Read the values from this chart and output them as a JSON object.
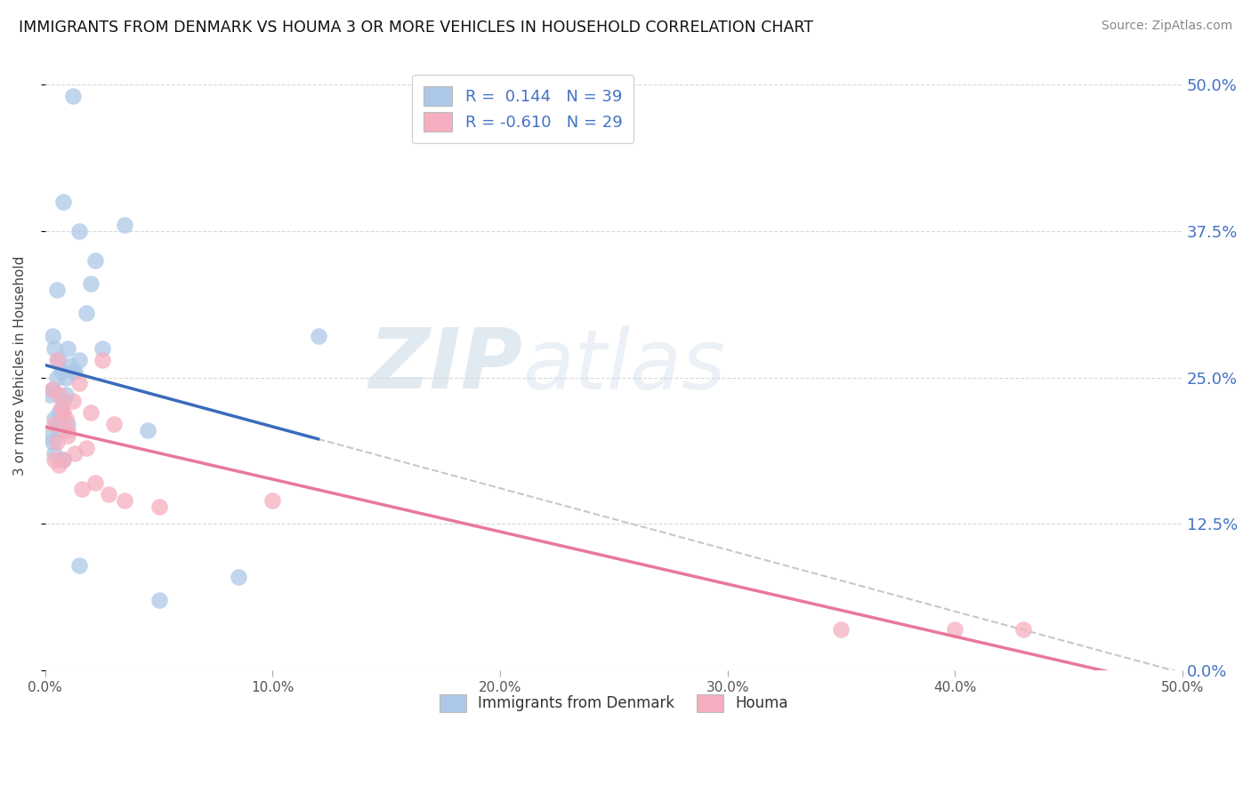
{
  "title": "IMMIGRANTS FROM DENMARK VS HOUMA 3 OR MORE VEHICLES IN HOUSEHOLD CORRELATION CHART",
  "source": "Source: ZipAtlas.com",
  "ylabel": "3 or more Vehicles in Household",
  "xlim": [
    0.0,
    50.0
  ],
  "ylim": [
    0.0,
    52.0
  ],
  "yticks": [
    0.0,
    12.5,
    25.0,
    37.5,
    50.0
  ],
  "xticks": [
    0.0,
    10.0,
    20.0,
    30.0,
    40.0,
    50.0
  ],
  "blue_R": 0.144,
  "blue_N": 39,
  "pink_R": -0.61,
  "pink_N": 29,
  "blue_color": "#adc8e8",
  "pink_color": "#f5afc0",
  "blue_line_color": "#3a6bbd",
  "pink_line_color": "#e8789a",
  "gray_line_color": "#c8c8c8",
  "background_color": "#ffffff",
  "watermark_zip": "ZIP",
  "watermark_atlas": "atlas",
  "blue_points_x": [
    1.2,
    0.8,
    1.5,
    0.5,
    2.2,
    1.8,
    0.3,
    0.4,
    0.6,
    1.0,
    0.7,
    0.5,
    0.3,
    0.2,
    0.8,
    1.1,
    0.6,
    0.4,
    0.9,
    1.3,
    0.2,
    0.5,
    0.7,
    1.0,
    0.3,
    0.6,
    0.4,
    0.8,
    1.5,
    1.2,
    0.9,
    12.0,
    2.5,
    4.5,
    3.5,
    2.0,
    8.5,
    5.0,
    1.5
  ],
  "blue_points_y": [
    49.0,
    40.0,
    37.5,
    32.5,
    35.0,
    30.5,
    28.5,
    27.5,
    26.5,
    27.5,
    25.5,
    25.0,
    24.0,
    23.5,
    23.0,
    26.0,
    22.0,
    21.5,
    23.5,
    25.5,
    20.0,
    21.0,
    22.0,
    21.0,
    19.5,
    20.5,
    18.5,
    18.0,
    26.5,
    25.5,
    25.0,
    28.5,
    27.5,
    20.5,
    38.0,
    33.0,
    8.0,
    6.0,
    9.0
  ],
  "pink_points_x": [
    0.3,
    0.5,
    0.4,
    0.6,
    0.8,
    1.0,
    0.7,
    0.9,
    1.2,
    0.5,
    0.4,
    1.5,
    2.0,
    1.8,
    1.3,
    0.6,
    0.8,
    1.0,
    2.5,
    2.2,
    1.6,
    3.0,
    3.5,
    2.8,
    5.0,
    35.0,
    40.0,
    43.0,
    10.0
  ],
  "pink_points_y": [
    24.0,
    26.5,
    21.0,
    23.5,
    22.0,
    20.5,
    22.5,
    21.5,
    23.0,
    19.5,
    18.0,
    24.5,
    22.0,
    19.0,
    18.5,
    17.5,
    18.0,
    20.0,
    26.5,
    16.0,
    15.5,
    21.0,
    14.5,
    15.0,
    14.0,
    3.5,
    3.5,
    3.5,
    14.5
  ]
}
